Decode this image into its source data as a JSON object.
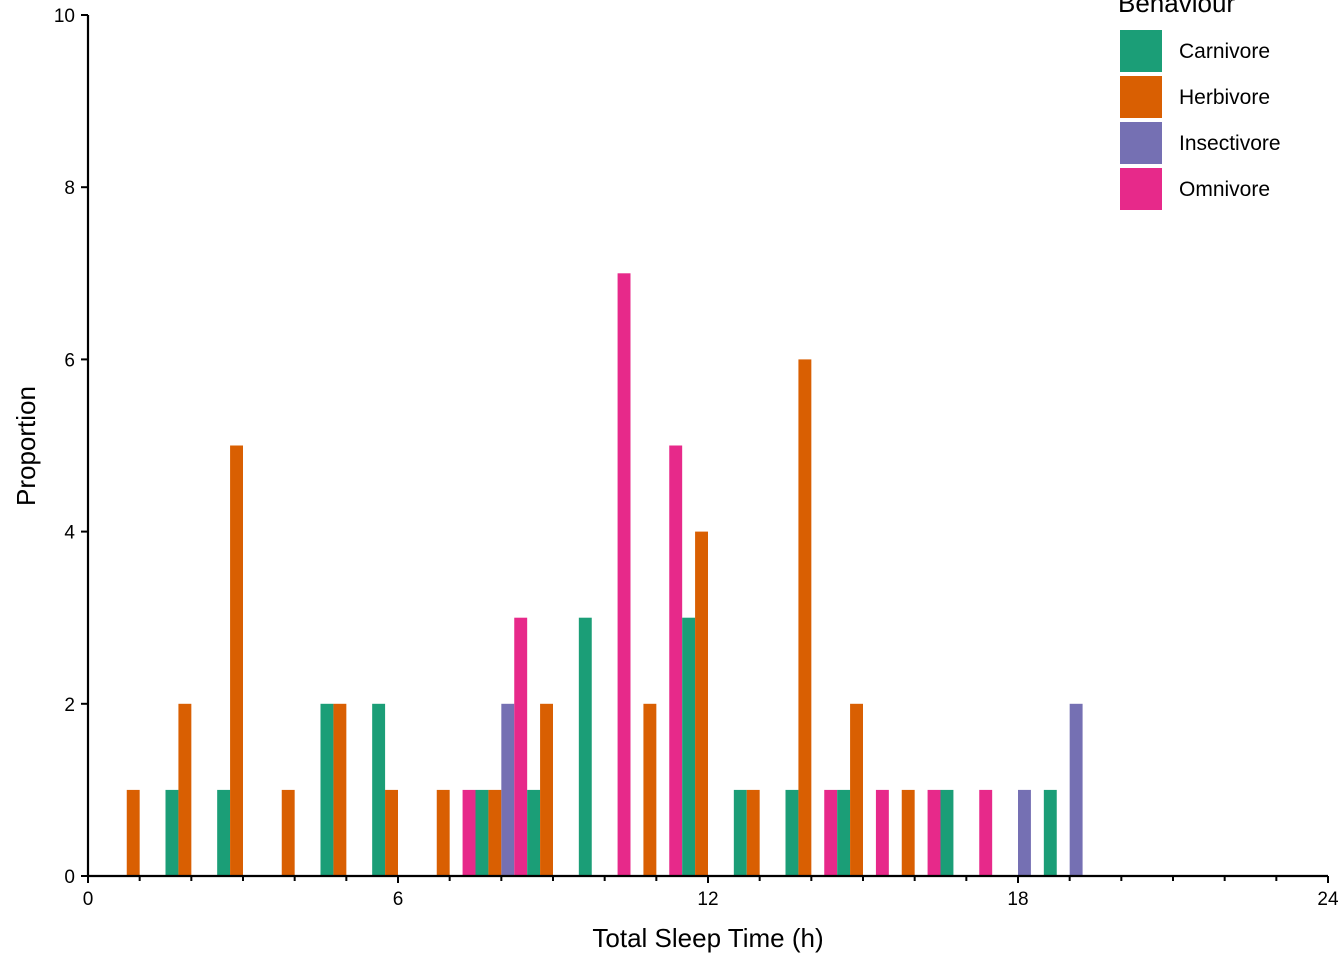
{
  "chart_data": {
    "type": "bar",
    "xlabel": "Total Sleep Time (h)",
    "ylabel": "Proportion",
    "xlim": [
      0,
      24
    ],
    "ylim": [
      0,
      10
    ],
    "x_major_ticks": [
      0,
      6,
      12,
      18,
      24
    ],
    "x_minor_step": 1,
    "y_ticks": [
      0,
      2,
      4,
      6,
      8,
      10
    ],
    "bin_width": 1,
    "bins": [
      1,
      2,
      3,
      4,
      5,
      6,
      7,
      8,
      9,
      10,
      11,
      12,
      13,
      14,
      15,
      16,
      17,
      18,
      19
    ],
    "grid": false,
    "legend": {
      "title": "Behaviour",
      "position": "top-right"
    },
    "series": [
      {
        "name": "Carnivore",
        "color": "#1B9E77",
        "values": [
          0,
          1,
          1,
          0,
          2,
          2,
          0,
          1,
          1,
          3,
          0,
          3,
          1,
          1,
          1,
          0,
          1,
          0,
          1
        ]
      },
      {
        "name": "Herbivore",
        "color": "#D95F02",
        "values": [
          1,
          2,
          5,
          1,
          2,
          1,
          1,
          1,
          2,
          0,
          2,
          4,
          1,
          6,
          2,
          1,
          0,
          0,
          0
        ]
      },
      {
        "name": "Insectivore",
        "color": "#7570B3",
        "values": [
          0,
          0,
          0,
          0,
          0,
          0,
          0,
          2,
          0,
          0,
          0,
          0,
          0,
          0,
          0,
          0,
          0,
          1,
          2
        ]
      },
      {
        "name": "Omnivore",
        "color": "#E7298A",
        "values": [
          0,
          0,
          0,
          0,
          0,
          0,
          1,
          3,
          0,
          7,
          5,
          0,
          0,
          1,
          1,
          1,
          1,
          0,
          0
        ]
      }
    ]
  }
}
